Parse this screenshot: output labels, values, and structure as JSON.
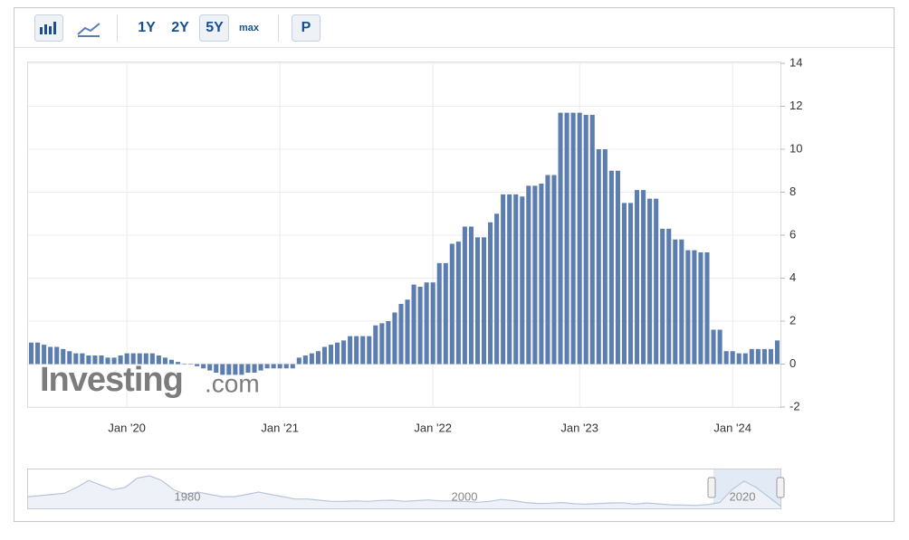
{
  "toolbar": {
    "buttons": [
      "1Y",
      "2Y",
      "5Y",
      "max",
      "P"
    ]
  },
  "watermark": {
    "brand": "Investing",
    "suffix": ".com"
  },
  "chart_data": {
    "type": "bar",
    "color": "#5b7db0",
    "categories": [
      null,
      null,
      null,
      null,
      null,
      null,
      null,
      null,
      null,
      null,
      null,
      null,
      null,
      null,
      null,
      "Jan '20",
      null,
      null,
      null,
      null,
      null,
      null,
      null,
      null,
      null,
      null,
      null,
      null,
      null,
      null,
      null,
      null,
      null,
      null,
      null,
      null,
      null,
      null,
      null,
      "Jan '21",
      null,
      null,
      null,
      null,
      null,
      null,
      null,
      null,
      null,
      null,
      null,
      null,
      null,
      null,
      null,
      null,
      null,
      null,
      null,
      null,
      null,
      null,
      null,
      "Jan '22",
      null,
      null,
      null,
      null,
      null,
      null,
      null,
      null,
      null,
      null,
      null,
      null,
      null,
      null,
      null,
      null,
      null,
      null,
      null,
      null,
      null,
      null,
      "Jan '23",
      null,
      null,
      null,
      null,
      null,
      null,
      null,
      null,
      null,
      null,
      null,
      null,
      null,
      null,
      null,
      null,
      null,
      null,
      null,
      null,
      null,
      null,
      null,
      "Jan '24",
      null,
      null,
      null,
      null,
      null,
      null,
      null
    ],
    "values": [
      1.0,
      1.0,
      0.9,
      0.8,
      0.8,
      0.7,
      0.6,
      0.5,
      0.5,
      0.4,
      0.4,
      0.4,
      0.3,
      0.3,
      0.4,
      0.5,
      0.5,
      0.5,
      0.5,
      0.5,
      0.4,
      0.3,
      0.2,
      0.1,
      0,
      0,
      -0.1,
      -0.2,
      -0.3,
      -0.4,
      -0.5,
      -0.5,
      -0.5,
      -0.5,
      -0.4,
      -0.4,
      -0.3,
      -0.2,
      -0.2,
      -0.2,
      -0.2,
      -0.2,
      0.3,
      0.4,
      0.5,
      0.6,
      0.8,
      0.9,
      1.0,
      1.1,
      1.3,
      1.3,
      1.3,
      1.3,
      1.8,
      1.9,
      2.0,
      2.4,
      2.8,
      3.0,
      3.7,
      3.6,
      3.8,
      3.8,
      4.7,
      4.7,
      5.6,
      5.7,
      6.4,
      6.4,
      5.9,
      5.9,
      6.6,
      7.0,
      7.9,
      7.9,
      7.9,
      7.8,
      8.3,
      8.3,
      8.4,
      8.8,
      8.8,
      11.7,
      11.7,
      11.7,
      11.7,
      11.6,
      11.6,
      10.0,
      10.0,
      9.0,
      9.0,
      7.5,
      7.5,
      8.1,
      8.1,
      7.7,
      7.7,
      6.3,
      6.3,
      5.8,
      5.8,
      5.3,
      5.3,
      5.2,
      5.2,
      1.6,
      1.6,
      0.6,
      0.6,
      0.5,
      0.5,
      0.7,
      0.7,
      0.7,
      0.7,
      1.1
    ],
    "ylim": [
      -2,
      14
    ],
    "yticks": [
      -2,
      0,
      2,
      4,
      6,
      8,
      10,
      12,
      14
    ],
    "grid": true
  },
  "navigator": {
    "labels": [
      "1980",
      "2000",
      "2020"
    ],
    "values": [
      5,
      5.5,
      6,
      6.5,
      9,
      12,
      10,
      8,
      9,
      13,
      14,
      12,
      8,
      6,
      7,
      6,
      5,
      5,
      6,
      7,
      6,
      5,
      4,
      4,
      3.5,
      3,
      3,
      3.2,
      3,
      3.4,
      3.5,
      3,
      3.3,
      3.6,
      3.2,
      3.2,
      3,
      2.6,
      3,
      3.8,
      3.3,
      2.5,
      2.1,
      2.2,
      2.5,
      2,
      1.8,
      2.1,
      2.3,
      2.4,
      1.8,
      2.3,
      1.9,
      1.5,
      1.4,
      1.3,
      1.6,
      2.5,
      8,
      11.7,
      9,
      5,
      1
    ]
  }
}
